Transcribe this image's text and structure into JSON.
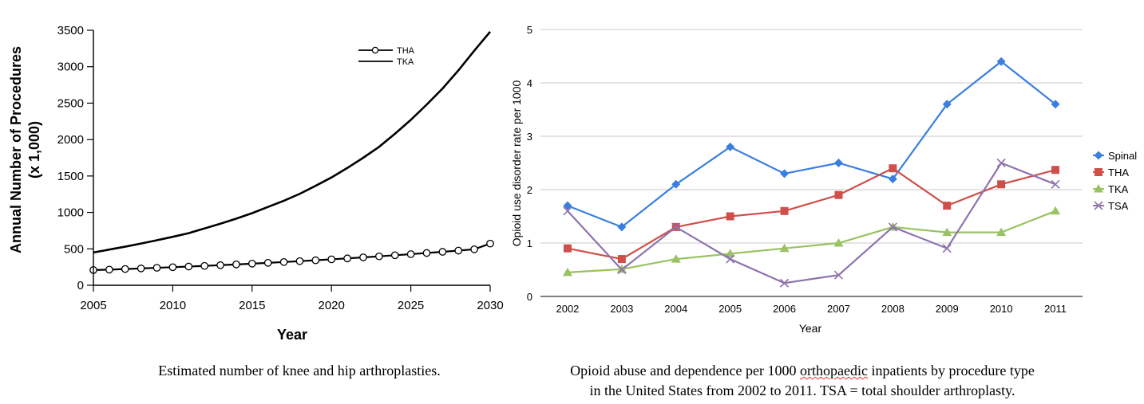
{
  "chart_data": [
    {
      "type": "line",
      "title": "",
      "xlabel": "Year",
      "ylabel_line1": "Annual Number of Procedures",
      "ylabel_line2": "(x 1,000)",
      "xlim": [
        2005,
        2030
      ],
      "ylim": [
        0,
        3500
      ],
      "xticks": [
        2005,
        2010,
        2015,
        2020,
        2025,
        2030
      ],
      "yticks": [
        0,
        500,
        1000,
        1500,
        2000,
        2500,
        3000,
        3500
      ],
      "grid": false,
      "legend": "top-right",
      "series": [
        {
          "name": "THA",
          "marker": "open-circle",
          "x": [
            2005,
            2006,
            2007,
            2008,
            2009,
            2010,
            2011,
            2012,
            2013,
            2014,
            2015,
            2016,
            2017,
            2018,
            2019,
            2020,
            2021,
            2022,
            2023,
            2024,
            2025,
            2026,
            2027,
            2028,
            2029,
            2030
          ],
          "values": [
            209,
            215,
            223,
            231,
            240,
            248,
            257,
            266,
            276,
            286,
            297,
            308,
            319,
            331,
            343,
            356,
            369,
            383,
            397,
            412,
            427,
            443,
            459,
            476,
            494,
            572
          ]
        },
        {
          "name": "TKA",
          "marker": "none",
          "x": [
            2005,
            2006,
            2007,
            2008,
            2009,
            2010,
            2011,
            2012,
            2013,
            2014,
            2015,
            2016,
            2017,
            2018,
            2019,
            2020,
            2021,
            2022,
            2023,
            2024,
            2025,
            2026,
            2027,
            2028,
            2029,
            2030
          ],
          "values": [
            450,
            490,
            530,
            573,
            618,
            665,
            715,
            780,
            845,
            915,
            990,
            1075,
            1160,
            1255,
            1365,
            1480,
            1610,
            1750,
            1900,
            2080,
            2270,
            2480,
            2700,
            2950,
            3220,
            3480
          ]
        }
      ],
      "caption": "Estimated number of knee and hip arthroplasties."
    },
    {
      "type": "line",
      "title": "",
      "xlabel": "Year",
      "ylabel": "Opioid use disorder rate per 1000",
      "categories": [
        "2002",
        "2003",
        "2004",
        "2005",
        "2006",
        "2007",
        "2008",
        "2009",
        "2010",
        "2011"
      ],
      "ylim": [
        0,
        5
      ],
      "yticks": [
        0,
        1,
        2,
        3,
        4,
        5
      ],
      "grid": true,
      "legend": "right",
      "series": [
        {
          "name": "Spinal",
          "color": "#3a7fe0",
          "marker": "diamond",
          "values": [
            1.7,
            1.3,
            2.1,
            2.8,
            2.3,
            2.5,
            2.2,
            3.6,
            4.4,
            3.6
          ]
        },
        {
          "name": "THA",
          "color": "#cf4f4a",
          "marker": "square",
          "values": [
            0.9,
            0.7,
            1.3,
            1.5,
            1.6,
            1.9,
            2.4,
            1.7,
            2.1,
            2.37
          ]
        },
        {
          "name": "TKA",
          "color": "#99c262",
          "marker": "triangle",
          "values": [
            0.45,
            0.51,
            0.7,
            0.8,
            0.9,
            1.0,
            1.3,
            1.2,
            1.2,
            1.6
          ]
        },
        {
          "name": "TSA",
          "color": "#8e73ad",
          "marker": "x",
          "values": [
            1.6,
            0.5,
            1.3,
            0.7,
            0.25,
            0.4,
            1.3,
            0.9,
            2.5,
            2.1
          ]
        }
      ],
      "caption_line1_pre": "Opioid abuse and dependence per 1000 ",
      "caption_line1_wavy": "orthopaedic",
      "caption_line1_post": " inpatients by procedure type",
      "caption_line2": "in the United States from 2002 to 2011. TSA = total shoulder arthroplasty."
    }
  ]
}
